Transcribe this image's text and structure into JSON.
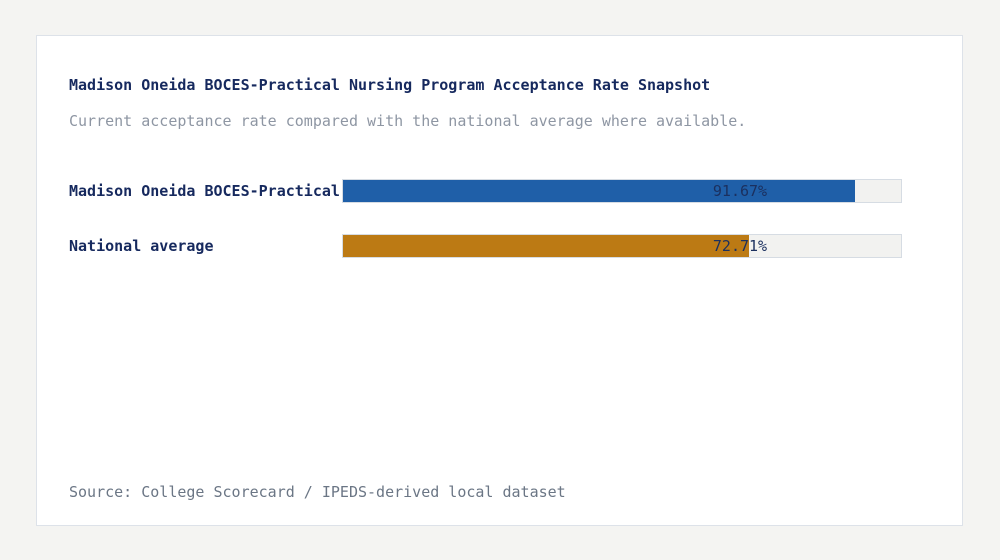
{
  "chart_data": {
    "type": "bar",
    "orientation": "horizontal",
    "title": "Madison Oneida BOCES-Practical Nursing Program Acceptance Rate Snapshot",
    "subtitle": "Current acceptance rate compared with the national average where available.",
    "categories": [
      "Madison Oneida BOCES-Practical",
      "National average"
    ],
    "values": [
      91.67,
      72.71
    ],
    "value_labels": [
      "91.67%",
      "72.71%"
    ],
    "xlim": [
      0,
      100
    ],
    "bar_colors": [
      "#1f5fa8",
      "#bc7a14"
    ],
    "track_color": "#f2f2f0",
    "label_color": "#16295e",
    "value_text_color": "#1b305f",
    "legend": "none",
    "grid": false,
    "source": "Source: College Scorecard / IPEDS-derived local dataset"
  },
  "page": {
    "background_color": "#f4f4f2",
    "card_color": "#ffffff"
  }
}
